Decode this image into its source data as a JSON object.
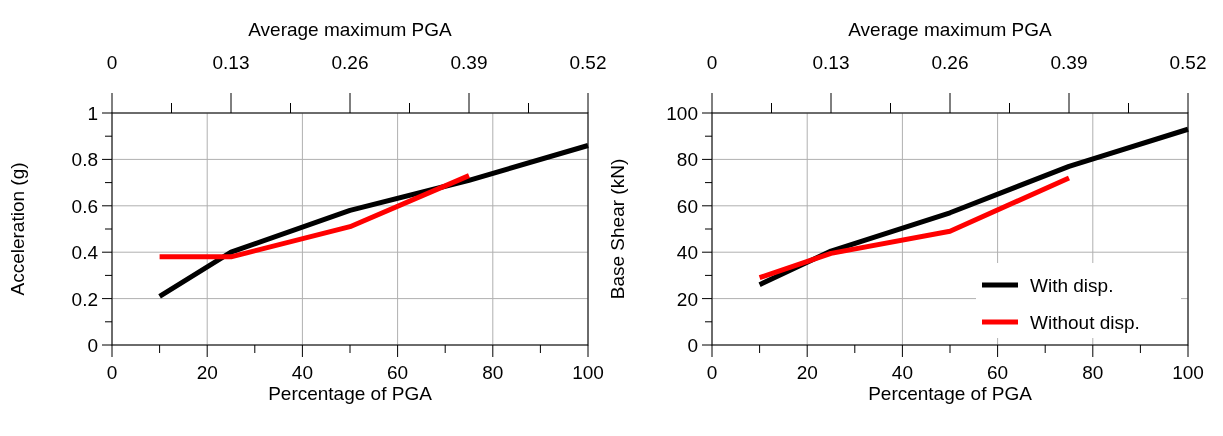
{
  "chart_data": [
    {
      "type": "line",
      "xlabel": "Percentage of PGA",
      "x2label": "Average maximum PGA",
      "ylabel": "Acceleration (g)",
      "x": [
        10,
        25,
        50,
        75,
        100
      ],
      "series": [
        {
          "color": "#000000",
          "values": [
            0.21,
            0.4,
            0.58,
            0.71,
            0.86
          ]
        },
        {
          "color": "#ff0000",
          "x": [
            10,
            25,
            50,
            75
          ],
          "values": [
            0.38,
            0.38,
            0.51,
            0.73
          ]
        }
      ],
      "xlim": [
        0,
        100
      ],
      "xticks": [
        0,
        {
          "value": 10,
          "label": null
        },
        20,
        {
          "value": 30,
          "label": null
        },
        40,
        {
          "value": 50,
          "label": null
        },
        60,
        {
          "value": 70,
          "label": null
        },
        80,
        {
          "value": 90,
          "label": null
        },
        100
      ],
      "x2lim": [
        0,
        0.52
      ],
      "x2ticks": [
        0,
        {
          "value": 0.065,
          "label": null
        },
        0.13,
        {
          "value": 0.195,
          "label": null
        },
        0.26,
        {
          "value": 0.325,
          "label": null
        },
        0.39,
        {
          "value": 0.455,
          "label": null
        },
        0.52
      ],
      "ylim": [
        0,
        1
      ],
      "yticks": [
        0,
        {
          "value": 0.1,
          "label": null
        },
        0.2,
        {
          "value": 0.3,
          "label": null
        },
        0.4,
        {
          "value": 0.5,
          "label": null
        },
        0.6,
        {
          "value": 0.7,
          "label": null
        },
        0.8,
        {
          "value": 0.9,
          "label": null
        },
        1
      ],
      "grid": true,
      "legend": false,
      "line_style": "solid",
      "marker": "none"
    },
    {
      "type": "line",
      "xlabel": "Percentage of PGA",
      "x2label": "Average maximum PGA",
      "ylabel": "Base Shear (kN)",
      "x": [
        10,
        25,
        50,
        75,
        100
      ],
      "series": [
        {
          "name": "With disp.",
          "color": "#000000",
          "values": [
            26,
            40.5,
            57,
            77,
            93
          ]
        },
        {
          "name": "Without disp.",
          "color": "#ff0000",
          "x": [
            10,
            25,
            50,
            75
          ],
          "values": [
            29,
            39.5,
            49,
            72
          ]
        }
      ],
      "xlim": [
        0,
        100
      ],
      "xticks": [
        0,
        {
          "value": 10,
          "label": null
        },
        20,
        {
          "value": 30,
          "label": null
        },
        40,
        {
          "value": 50,
          "label": null
        },
        60,
        {
          "value": 70,
          "label": null
        },
        80,
        {
          "value": 90,
          "label": null
        },
        100
      ],
      "x2lim": [
        0,
        0.52
      ],
      "x2ticks": [
        0,
        {
          "value": 0.065,
          "label": null
        },
        0.13,
        {
          "value": 0.195,
          "label": null
        },
        0.26,
        {
          "value": 0.325,
          "label": null
        },
        0.39,
        {
          "value": 0.455,
          "label": null
        },
        0.52
      ],
      "ylim": [
        0,
        100
      ],
      "yticks": [
        0,
        {
          "value": 10,
          "label": null
        },
        20,
        {
          "value": 30,
          "label": null
        },
        40,
        {
          "value": 50,
          "label": null
        },
        60,
        {
          "value": 70,
          "label": null
        },
        80,
        {
          "value": 90,
          "label": null
        },
        100
      ],
      "grid": true,
      "legend": "bottom right",
      "line_style": "solid",
      "marker": "none"
    }
  ]
}
